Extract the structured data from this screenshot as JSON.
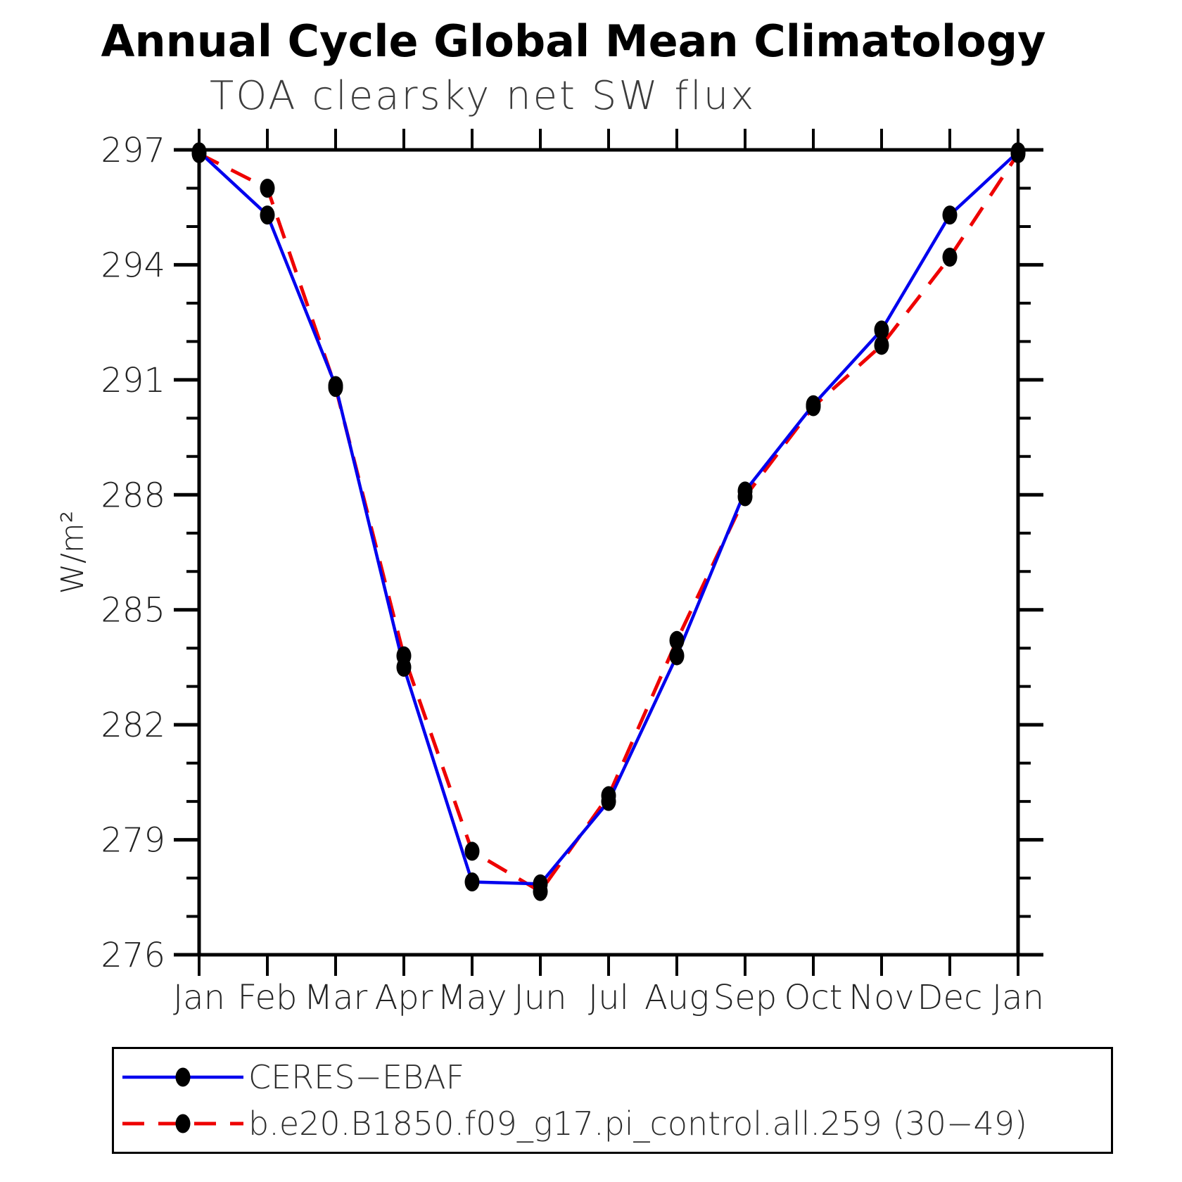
{
  "chart_data": {
    "type": "line",
    "title": "Annual Cycle Global Mean Climatology",
    "subtitle": "TOA clearsky net SW flux",
    "ylabel": "W/m²",
    "x_categories": [
      "Jan",
      "Feb",
      "Mar",
      "Apr",
      "May",
      "Jun",
      "Jul",
      "Aug",
      "Sep",
      "Oct",
      "Nov",
      "Dec",
      "Jan"
    ],
    "ylim": [
      276,
      297
    ],
    "ytick_major_step": 3,
    "ytick_minor_step": 1,
    "ytick_major_labels": [
      "276",
      "279",
      "282",
      "285",
      "288",
      "291",
      "294",
      "297"
    ],
    "grid": "off",
    "legend_position": "bottom-left-box",
    "axis_color": "#000000",
    "marker": "filled-ellipse",
    "marker_color": "#000000",
    "series": [
      {
        "name": "CERES−EBAF",
        "color": "#0000ee",
        "line_style": "solid",
        "values": [
          296.95,
          295.3,
          290.85,
          283.5,
          277.9,
          277.85,
          280.0,
          283.8,
          288.1,
          290.35,
          292.3,
          295.3,
          296.95
        ]
      },
      {
        "name": "b.e20.B1850.f09_g17.pi_control.all.259 (30−49)",
        "color": "#ee0000",
        "line_style": "dashed",
        "values": [
          296.9,
          296.0,
          290.8,
          283.8,
          278.7,
          277.65,
          280.15,
          284.2,
          287.95,
          290.3,
          291.9,
          294.2,
          296.9
        ]
      }
    ]
  }
}
